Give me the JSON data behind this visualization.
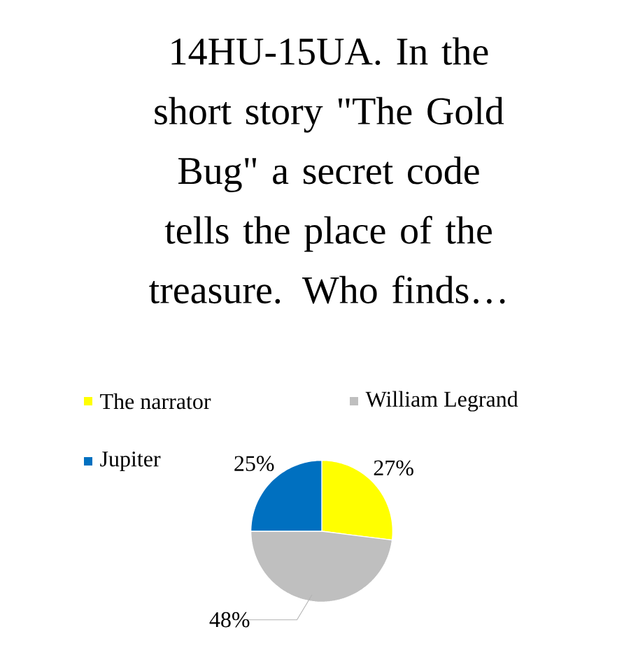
{
  "chart_data": {
    "type": "pie",
    "title": "14HU-15UA. In the short story \"The Gold Bug\" a secret code tells the place of the treasure. Who finds…",
    "categories": [
      "The narrator",
      "William Legrand",
      "Jupiter"
    ],
    "values": [
      27,
      48,
      25
    ],
    "colors": [
      "#ffff00",
      "#bfbfbf",
      "#0070c0"
    ],
    "value_labels": [
      "27%",
      "48%",
      "25%"
    ],
    "legend": "top"
  }
}
